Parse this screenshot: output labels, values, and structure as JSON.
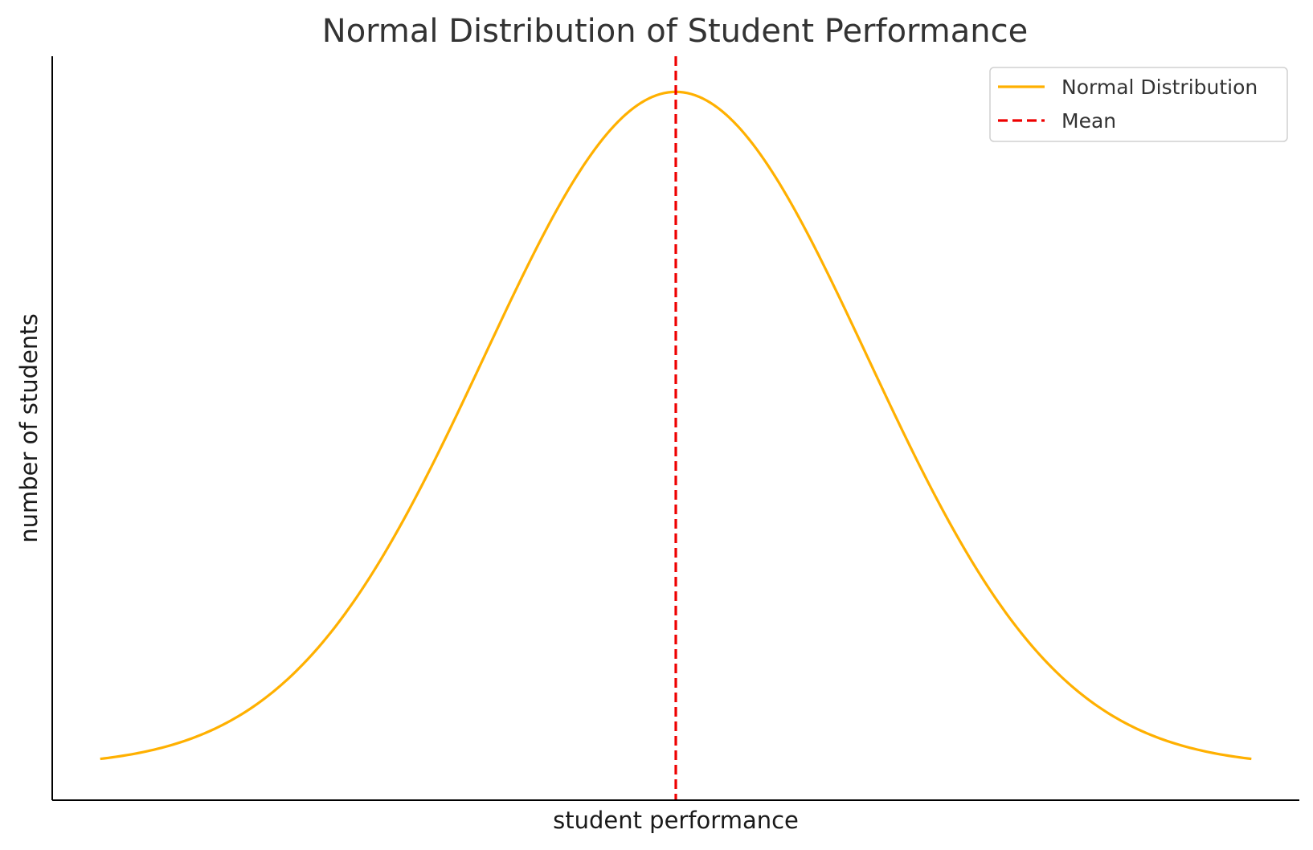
{
  "chart_data": {
    "type": "line",
    "title": "Normal Distribution of Student Performance",
    "xlabel": "student performance",
    "ylabel": "number of students",
    "xlim": [
      -3.25,
      3.25
    ],
    "ylim": [
      -0.02,
      0.42
    ],
    "grid": false,
    "show_ticks": false,
    "legend_position": "top-right",
    "series": [
      {
        "name": "Normal Distribution",
        "kind": "pdf-curve",
        "mean": 0,
        "std": 1,
        "x_range": [
          -3,
          3
        ],
        "color": "#FFB000",
        "linestyle": "solid"
      },
      {
        "name": "Mean",
        "kind": "vertical-line",
        "x": 0,
        "color": "#EE0000",
        "linestyle": "dashed"
      }
    ]
  }
}
